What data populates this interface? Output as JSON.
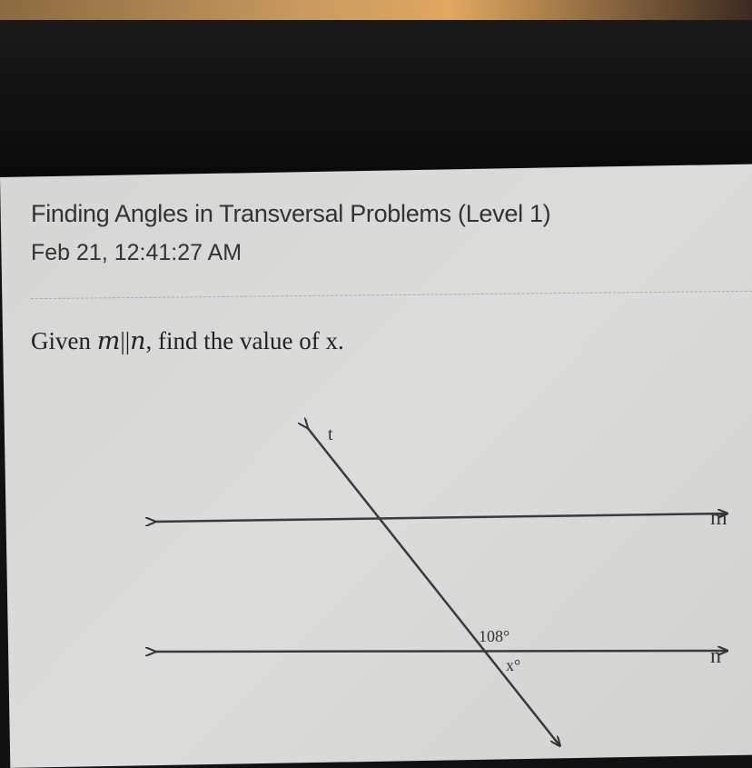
{
  "header": {
    "title": "Finding Angles in Transversal Problems (Level 1)",
    "timestamp": "Feb 21, 12:41:27 AM"
  },
  "question": {
    "prefix": "Given ",
    "line1": "m",
    "parallel": "||",
    "line2": "n",
    "suffix": ", find the value of x."
  },
  "diagram": {
    "transversal_label": "t",
    "line_m_label": "m",
    "line_n_label": "n",
    "given_angle": "108°",
    "unknown_angle": "x°"
  }
}
